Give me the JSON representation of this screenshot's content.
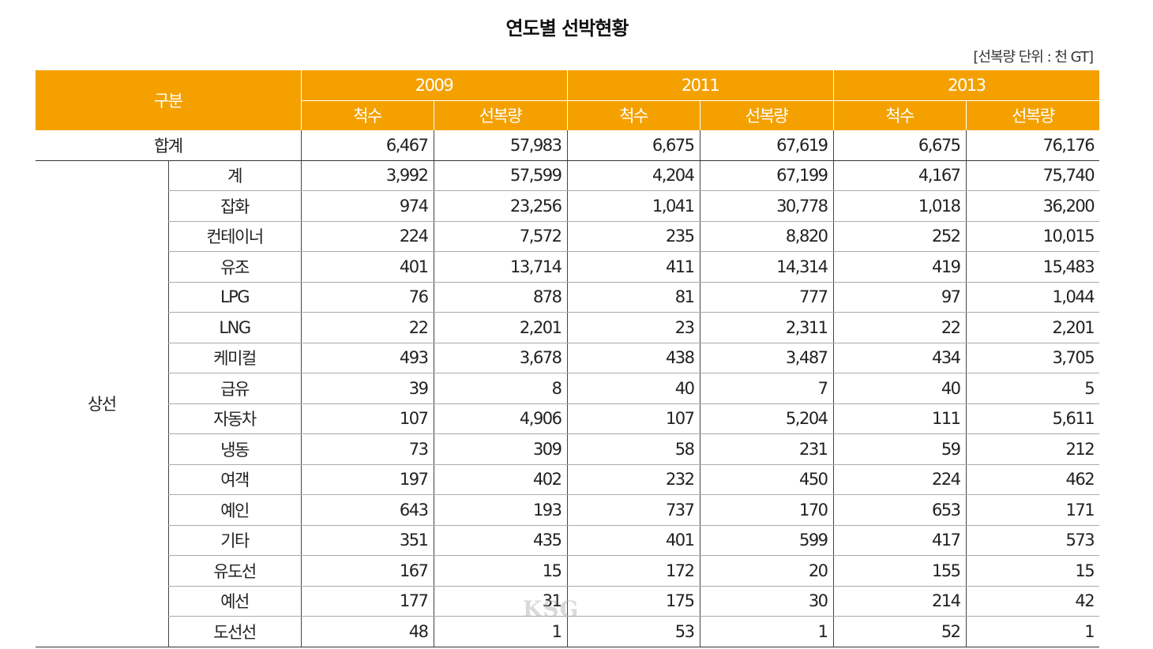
{
  "title": "연도별 선박현황",
  "unit_note": "[선복량 단위 : 천 GT]",
  "header": {
    "category": "구분",
    "years": [
      "2009",
      "2011",
      "2013"
    ],
    "count_label": "척수",
    "tonnage_label": "선복량"
  },
  "total": {
    "label": "합계",
    "values": [
      "6,467",
      "57,983",
      "6,675",
      "67,619",
      "6,675",
      "76,176"
    ]
  },
  "group_label": "상선",
  "rows": [
    {
      "label": "계",
      "values": [
        "3,992",
        "57,599",
        "4,204",
        "67,199",
        "4,167",
        "75,740"
      ]
    },
    {
      "label": "잡화",
      "values": [
        "974",
        "23,256",
        "1,041",
        "30,778",
        "1,018",
        "36,200"
      ]
    },
    {
      "label": "컨테이너",
      "values": [
        "224",
        "7,572",
        "235",
        "8,820",
        "252",
        "10,015"
      ]
    },
    {
      "label": "유조",
      "values": [
        "401",
        "13,714",
        "411",
        "14,314",
        "419",
        "15,483"
      ]
    },
    {
      "label": "LPG",
      "values": [
        "76",
        "878",
        "81",
        "777",
        "97",
        "1,044"
      ]
    },
    {
      "label": "LNG",
      "values": [
        "22",
        "2,201",
        "23",
        "2,311",
        "22",
        "2,201"
      ]
    },
    {
      "label": "케미컬",
      "values": [
        "493",
        "3,678",
        "438",
        "3,487",
        "434",
        "3,705"
      ]
    },
    {
      "label": "급유",
      "values": [
        "39",
        "8",
        "40",
        "7",
        "40",
        "5"
      ]
    },
    {
      "label": "자동차",
      "values": [
        "107",
        "4,906",
        "107",
        "5,204",
        "111",
        "5,611"
      ]
    },
    {
      "label": "냉동",
      "values": [
        "73",
        "309",
        "58",
        "231",
        "59",
        "212"
      ]
    },
    {
      "label": "여객",
      "values": [
        "197",
        "402",
        "232",
        "450",
        "224",
        "462"
      ]
    },
    {
      "label": "예인",
      "values": [
        "643",
        "193",
        "737",
        "170",
        "653",
        "171"
      ]
    },
    {
      "label": "기타",
      "values": [
        "351",
        "435",
        "401",
        "599",
        "417",
        "573"
      ]
    },
    {
      "label": "유도선",
      "values": [
        "167",
        "15",
        "172",
        "20",
        "155",
        "15"
      ]
    },
    {
      "label": "예선",
      "values": [
        "177",
        "31",
        "175",
        "30",
        "214",
        "42"
      ]
    },
    {
      "label": "도선선",
      "values": [
        "48",
        "1",
        "53",
        "1",
        "52",
        "1"
      ]
    }
  ],
  "watermark": "KSG",
  "colors": {
    "header_bg": "#f4a100",
    "header_text": "#ffffff"
  }
}
